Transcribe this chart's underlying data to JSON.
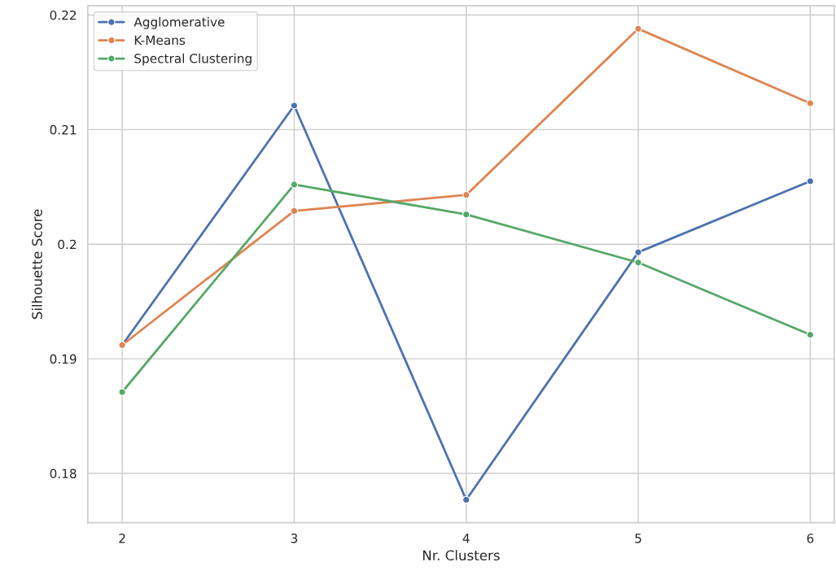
{
  "chart_data": {
    "type": "line",
    "xlabel": "Nr. Clusters",
    "ylabel": "Silhouette Score",
    "x": [
      2,
      3,
      4,
      5,
      6
    ],
    "series": [
      {
        "name": "Agglomerative",
        "color": "#4c72b0",
        "values": [
          0.1912,
          0.2121,
          0.1777,
          0.1993,
          0.2055
        ]
      },
      {
        "name": "K-Means",
        "color": "#dd8452",
        "values": [
          0.1912,
          0.2029,
          0.2043,
          0.2188,
          0.2123
        ]
      },
      {
        "name": "Spectral Clustering",
        "color": "#55a868",
        "values": [
          0.1871,
          0.2052,
          0.2026,
          0.1984,
          0.1921
        ]
      }
    ],
    "xlim": [
      1.8,
      6.14
    ],
    "xticks": [
      2,
      3,
      4,
      5,
      6
    ],
    "ylim": [
      0.1757,
      0.2208
    ],
    "yticks": [
      0.18,
      0.19,
      0.2,
      0.21,
      0.22
    ],
    "grid": true,
    "legend": "top left",
    "marker": "circle",
    "line_style": "solid"
  }
}
